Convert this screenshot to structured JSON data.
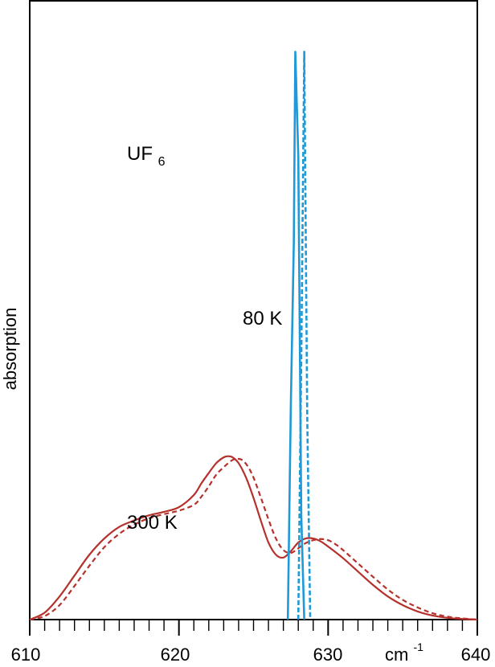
{
  "chart_data": {
    "type": "line",
    "title": "",
    "xlabel": "",
    "ylabel": "absorption",
    "x_unit": "cm",
    "x_unit_exp": "-1",
    "xlim": [
      610,
      640
    ],
    "ylim": [
      0,
      1
    ],
    "x_tick_labels": [
      "610",
      "620",
      "630",
      "640"
    ],
    "x_tick_values": [
      610,
      620,
      630,
      640
    ],
    "annotations": {
      "compound_main": "UF",
      "compound_sub": "6",
      "low_temp": "80 K",
      "high_temp": "300 K"
    },
    "colors": {
      "300K": "#b5312c",
      "80K": "#1f9ad6",
      "axis": "#000000"
    },
    "series": [
      {
        "group": "300 K",
        "style": "solid",
        "color": "#b5312c",
        "x": [
          610.0,
          611.0,
          612.0,
          613.0,
          614.0,
          615.0,
          616.0,
          617.0,
          618.0,
          619.0,
          620.0,
          621.0,
          621.5,
          622.0,
          622.5,
          623.0,
          623.3,
          623.6,
          624.0,
          624.5,
          625.0,
          625.5,
          626.0,
          626.5,
          627.0,
          627.5,
          628.0,
          628.5,
          629.0,
          629.5,
          630.0,
          631.0,
          632.0,
          633.0,
          634.0,
          635.0,
          636.0,
          637.0,
          638.0,
          639.0,
          640.0
        ],
        "y": [
          0.0,
          0.012,
          0.04,
          0.076,
          0.112,
          0.14,
          0.16,
          0.171,
          0.18,
          0.186,
          0.194,
          0.215,
          0.235,
          0.253,
          0.27,
          0.28,
          0.282,
          0.28,
          0.27,
          0.245,
          0.21,
          0.17,
          0.133,
          0.112,
          0.107,
          0.118,
          0.133,
          0.14,
          0.14,
          0.135,
          0.126,
          0.106,
          0.083,
          0.06,
          0.04,
          0.025,
          0.014,
          0.007,
          0.003,
          0.001,
          0.0
        ]
      },
      {
        "group": "300 K",
        "style": "dashed",
        "color": "#b5312c",
        "x": [
          610.0,
          611.0,
          612.0,
          613.0,
          614.0,
          615.0,
          616.0,
          617.0,
          618.0,
          619.0,
          620.0,
          621.0,
          621.5,
          622.0,
          622.5,
          623.0,
          623.5,
          623.8,
          624.2,
          624.6,
          625.0,
          625.5,
          626.0,
          626.5,
          627.0,
          627.5,
          628.0,
          628.5,
          629.0,
          629.5,
          630.0,
          630.5,
          631.0,
          632.0,
          633.0,
          634.0,
          635.0,
          636.0,
          637.0,
          638.0,
          639.0,
          640.0
        ],
        "y": [
          0.0,
          0.006,
          0.025,
          0.058,
          0.093,
          0.125,
          0.148,
          0.164,
          0.175,
          0.182,
          0.188,
          0.198,
          0.212,
          0.23,
          0.25,
          0.263,
          0.274,
          0.277,
          0.276,
          0.265,
          0.245,
          0.21,
          0.173,
          0.14,
          0.12,
          0.115,
          0.123,
          0.132,
          0.137,
          0.139,
          0.137,
          0.13,
          0.12,
          0.097,
          0.074,
          0.052,
          0.034,
          0.021,
          0.011,
          0.005,
          0.002,
          0.0
        ]
      },
      {
        "group": "80 K",
        "style": "solid",
        "color": "#1f9ad6",
        "x": [
          627.3,
          627.5,
          627.7,
          627.8,
          628.0,
          628.2,
          628.4
        ],
        "y": [
          0.0,
          0.37,
          0.65,
          0.98,
          0.8,
          0.18,
          0.0
        ]
      },
      {
        "group": "80 K",
        "style": "dashed",
        "color": "#1f9ad6",
        "x": [
          628.0,
          628.2,
          628.4,
          628.6,
          628.8
        ],
        "y": [
          0.0,
          0.45,
          0.98,
          0.35,
          0.0
        ]
      }
    ]
  }
}
